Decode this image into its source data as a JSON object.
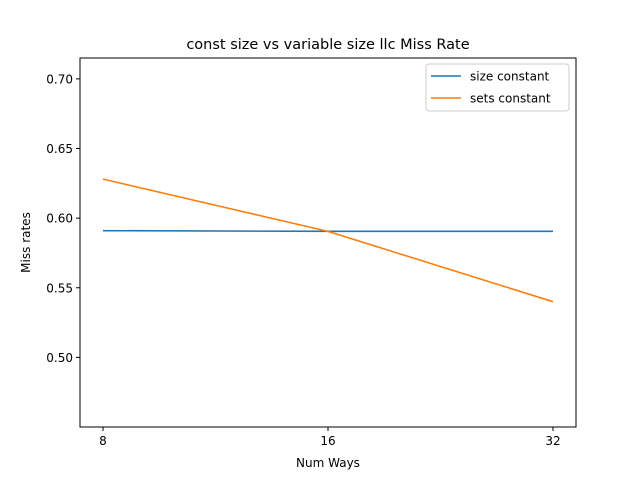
{
  "chart_data": {
    "type": "line",
    "title": "const size vs variable size llc Miss Rate",
    "xlabel": "Num Ways",
    "ylabel": "Miss rates",
    "x": [
      8,
      16,
      32
    ],
    "x_tick_labels": [
      "8",
      "16",
      "32"
    ],
    "y_ticks": [
      0.5,
      0.55,
      0.6,
      0.65,
      0.7
    ],
    "y_tick_labels": [
      "0.50",
      "0.55",
      "0.60",
      "0.65",
      "0.70"
    ],
    "ylim": [
      0.45,
      0.715
    ],
    "grid": false,
    "legend_position": "upper-right",
    "series": [
      {
        "name": "size constant",
        "color": "#1f77b4",
        "values": [
          0.591,
          0.5905,
          0.5905
        ]
      },
      {
        "name": "sets constant",
        "color": "#ff7f0e",
        "values": [
          0.628,
          0.5905,
          0.54
        ]
      }
    ]
  }
}
